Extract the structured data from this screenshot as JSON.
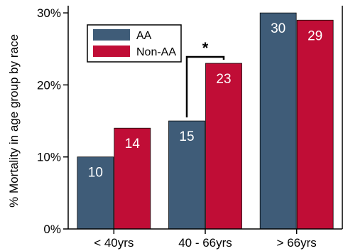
{
  "chart_data": {
    "type": "bar",
    "title": "",
    "xlabel": "",
    "ylabel": "% Mortality in age group by race",
    "categories": [
      "< 40yrs",
      "40 - 66yrs",
      "> 66yrs"
    ],
    "series": [
      {
        "name": "AA",
        "values": [
          10,
          15,
          30
        ],
        "labels": [
          "10",
          "15",
          "30"
        ],
        "color": "#3f5c78"
      },
      {
        "name": "Non-AA",
        "values": [
          14,
          23,
          29
        ],
        "labels": [
          "14",
          "23",
          "29"
        ],
        "color": "#c00d36"
      }
    ],
    "ylim": [
      0,
      31
    ],
    "yticks": [
      0,
      10,
      20,
      30
    ],
    "ytick_labels": [
      "0%",
      "10%",
      "20%",
      "30%"
    ],
    "grid": false,
    "legend_position": "top-left",
    "annotation": {
      "text": "*",
      "category_index": 1,
      "type": "significance-bracket"
    }
  }
}
